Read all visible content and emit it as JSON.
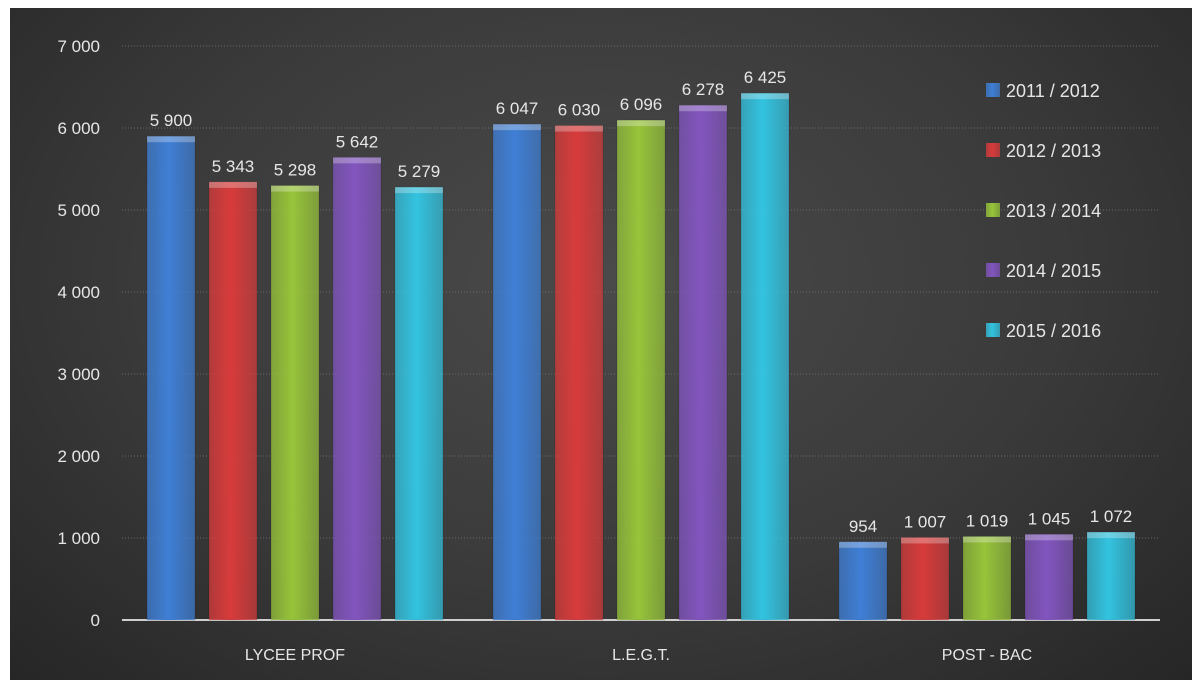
{
  "chart_data": {
    "type": "bar",
    "title": "",
    "xlabel": "",
    "ylabel": "",
    "categories": [
      "LYCEE PROF",
      "L.E.G.T.",
      "POST - BAC"
    ],
    "series": [
      {
        "name": "2011 / 2012",
        "color": "#3f7fd6",
        "values": [
          5900,
          6047,
          954
        ],
        "labels": [
          "5 900",
          "6 047",
          "954"
        ]
      },
      {
        "name": "2012 / 2013",
        "color": "#d83b3b",
        "values": [
          5343,
          6030,
          1007
        ],
        "labels": [
          "5 343",
          "6 030",
          "1 007"
        ]
      },
      {
        "name": "2013 / 2014",
        "color": "#97c43a",
        "values": [
          5298,
          6096,
          1019
        ],
        "labels": [
          "5 298",
          "6 096",
          "1 019"
        ]
      },
      {
        "name": "2014 / 2015",
        "color": "#8255bf",
        "values": [
          5642,
          6278,
          1045
        ],
        "labels": [
          "5 642",
          "6 278",
          "1 045"
        ]
      },
      {
        "name": "2015 / 2016",
        "color": "#33c3e0",
        "values": [
          5279,
          6425,
          1072
        ],
        "labels": [
          "5 279",
          "6 425",
          "1 072"
        ]
      }
    ],
    "ylim": [
      0,
      7000
    ],
    "yticks": [
      0,
      1000,
      2000,
      3000,
      4000,
      5000,
      6000,
      7000
    ],
    "ytick_labels": [
      "0",
      "1 000",
      "2 000",
      "3 000",
      "4 000",
      "5 000",
      "6 000",
      "7 000"
    ],
    "grid": true,
    "legend_position": "right"
  }
}
